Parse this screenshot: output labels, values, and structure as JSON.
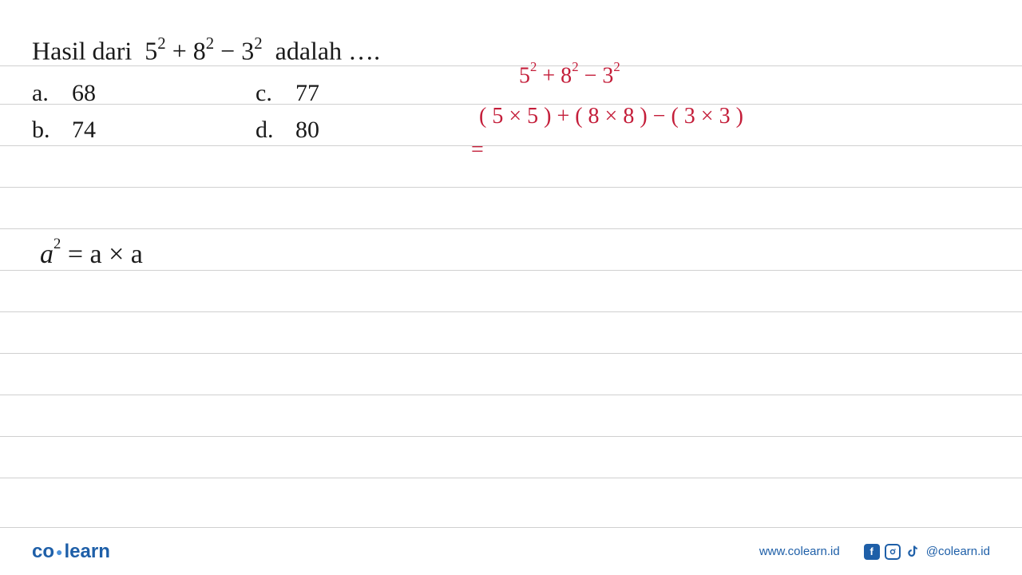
{
  "question": {
    "prefix": "Hasil dari",
    "expression_parts": [
      "5",
      "2",
      " + 8",
      "2",
      " − 3",
      "2"
    ],
    "suffix": "adalah …."
  },
  "options": {
    "a": {
      "label": "a.",
      "value": "68"
    },
    "b": {
      "label": "b.",
      "value": "74"
    },
    "c": {
      "label": "c.",
      "value": "77"
    },
    "d": {
      "label": "d.",
      "value": "80"
    }
  },
  "handwriting": {
    "line1_parts": [
      "5",
      "2",
      " + 8",
      "2",
      " − 3",
      "2"
    ],
    "line2": "( 5 × 5 ) + ( 8 × 8 ) − ( 3 × 3 )",
    "line3": "="
  },
  "formula": {
    "base": "a",
    "exp": "2",
    "rhs": " = a × a"
  },
  "footer": {
    "logo_part1": "co",
    "logo_part2": "learn",
    "url": "www.colearn.id",
    "handle": "@colearn.id"
  },
  "styling": {
    "text_color": "#1a1a1a",
    "handwrite_color": "#c41e3a",
    "brand_color": "#1e5fa8",
    "rule_color": "#d0d0d0",
    "background": "#ffffff",
    "ruled_line_positions": [
      82,
      130,
      182,
      234,
      286,
      338,
      390,
      442,
      494,
      546,
      598
    ]
  }
}
